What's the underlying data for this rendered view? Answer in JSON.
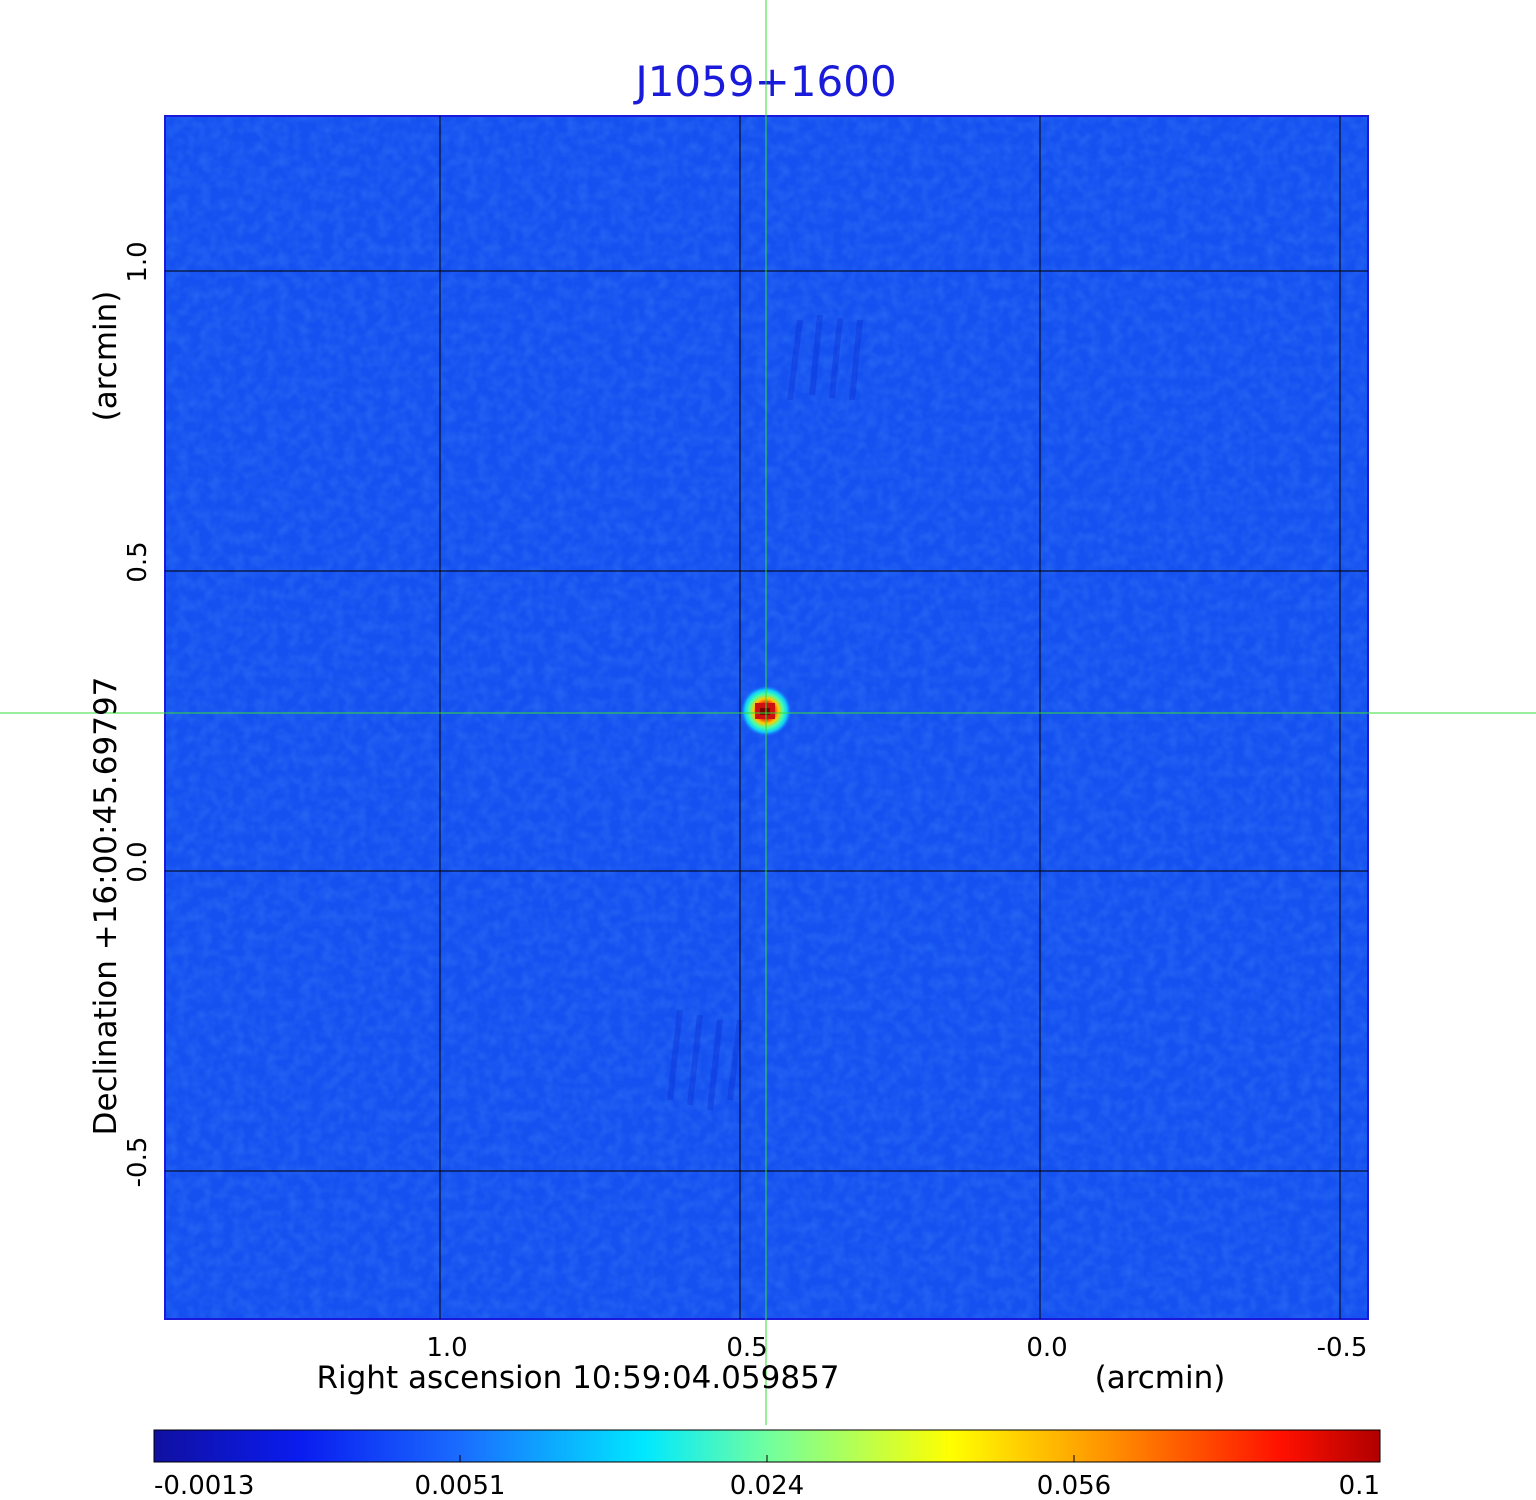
{
  "title": "J1059+1600",
  "colors": {
    "title": "#1a1adb",
    "background_map": "#1550f0",
    "grid": "#000000",
    "crosshair": "#33dd33",
    "source_core": "#cc1010"
  },
  "axes": {
    "x_label": "Right ascension  10:59:04.059857",
    "x_unit": "(arcmin)",
    "x_ticks": [
      "1.0",
      "0.5",
      "0.0",
      "-0.5"
    ],
    "y_label": "Declination  +16:00:45.69797",
    "y_unit": "(arcmin)",
    "y_ticks": [
      "1.0",
      "0.5",
      "0.0",
      "-0.5"
    ]
  },
  "colorbar": {
    "ticks": [
      "-0.0013",
      "0.0051",
      "0.024",
      "0.056",
      "0.1"
    ],
    "stops": [
      "#1010a0",
      "#0a1cf0",
      "#1a6cff",
      "#00e8ff",
      "#70ffa0",
      "#ffff00",
      "#ff9000",
      "#ff1000",
      "#b00000"
    ]
  }
}
